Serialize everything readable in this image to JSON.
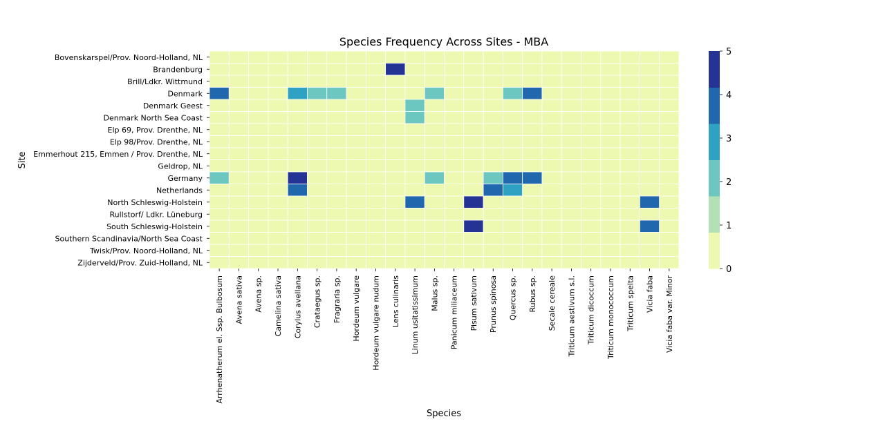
{
  "chart_data": {
    "type": "heatmap",
    "title": "Species Frequency Across Sites - MBA",
    "xlabel": "Species",
    "ylabel": "Site",
    "rows": [
      "Bovenskarspel/Prov. Noord-Holland, NL",
      "Brandenburg",
      "Brill/Ldkr. Wittmund",
      "Denmark",
      "Denmark Geest",
      "Denmark North Sea Coast",
      "Elp 69, Prov. Drenthe, NL",
      "Elp 98/Prov. Drenthe, NL",
      "Emmerhout 215, Emmen / Prov. Drenthe, NL",
      "Geldrop, NL",
      "Germany",
      "Netherlands",
      "North Schleswig-Holstein",
      "Rullstorf/ Ldkr. Lüneburg",
      "South Schleswig-Holstein",
      "Southern Scandinavia/North Sea Coast",
      "Twisk/Prov. Noord-Holland, NL",
      "Zijderveld/Prov. Zuid-Holland, NL"
    ],
    "columns": [
      "Arrhenatherum el. Ssp. Bulbosum",
      "Avena sativa",
      "Avena sp.",
      "Camelina sativa",
      "Corylus avellana",
      "Crataegus sp.",
      "Fragraria sp.",
      "Hordeum vulgare",
      "Hordeum vulgare nudum",
      "Lens culinaris",
      "Linum usitatissimum",
      "Malus sp.",
      "Panicum miliaceum",
      "Pisum sativum",
      "Prunus spinosa",
      "Quercus sp.",
      "Rubus sp.",
      "Secale cereale",
      "Triticum aestivum s.l.",
      "Triticum dicoccum",
      "Triticum monococcum",
      "Triticum spelta",
      "Vicia faba",
      "Vicia faba var. Minor"
    ],
    "values": [
      [
        0,
        0,
        0,
        0,
        0,
        0,
        0,
        0,
        0,
        0,
        0,
        0,
        0,
        0,
        0,
        0,
        0,
        0,
        0,
        0,
        0,
        0,
        0,
        0
      ],
      [
        0,
        0,
        0,
        0,
        0,
        0,
        0,
        0,
        0,
        5,
        0,
        0,
        0,
        0,
        0,
        0,
        0,
        0,
        0,
        0,
        0,
        0,
        0,
        0
      ],
      [
        0,
        0,
        0,
        0,
        0,
        0,
        0,
        0,
        0,
        0,
        0,
        0,
        0,
        0,
        0,
        0,
        0,
        0,
        0,
        0,
        0,
        0,
        0,
        0
      ],
      [
        4,
        0,
        0,
        0,
        3,
        2,
        2,
        0,
        0,
        0,
        0,
        2,
        0,
        0,
        0,
        2,
        4,
        0,
        0,
        0,
        0,
        0,
        0,
        0
      ],
      [
        0,
        0,
        0,
        0,
        0,
        0,
        0,
        0,
        0,
        0,
        2,
        0,
        0,
        0,
        0,
        0,
        0,
        0,
        0,
        0,
        0,
        0,
        0,
        0
      ],
      [
        0,
        0,
        0,
        0,
        0,
        0,
        0,
        0,
        0,
        0,
        2,
        0,
        0,
        0,
        0,
        0,
        0,
        0,
        0,
        0,
        0,
        0,
        0,
        0
      ],
      [
        0,
        0,
        0,
        0,
        0,
        0,
        0,
        0,
        0,
        0,
        0,
        0,
        0,
        0,
        0,
        0,
        0,
        0,
        0,
        0,
        0,
        0,
        0,
        0
      ],
      [
        0,
        0,
        0,
        0,
        0,
        0,
        0,
        0,
        0,
        0,
        0,
        0,
        0,
        0,
        0,
        0,
        0,
        0,
        0,
        0,
        0,
        0,
        0,
        0
      ],
      [
        0,
        0,
        0,
        0,
        0,
        0,
        0,
        0,
        0,
        0,
        0,
        0,
        0,
        0,
        0,
        0,
        0,
        0,
        0,
        0,
        0,
        0,
        0,
        0
      ],
      [
        0,
        0,
        0,
        0,
        0,
        0,
        0,
        0,
        0,
        0,
        0,
        0,
        0,
        0,
        0,
        0,
        0,
        0,
        0,
        0,
        0,
        0,
        0,
        0
      ],
      [
        2,
        0,
        0,
        0,
        5,
        0,
        0,
        0,
        0,
        0,
        0,
        2,
        0,
        0,
        2,
        4,
        4,
        0,
        0,
        0,
        0,
        0,
        0,
        0
      ],
      [
        0,
        0,
        0,
        0,
        4,
        0,
        0,
        0,
        0,
        0,
        0,
        0,
        0,
        0,
        4,
        3,
        0,
        0,
        0,
        0,
        0,
        0,
        0,
        0
      ],
      [
        0,
        0,
        0,
        0,
        0,
        0,
        0,
        0,
        0,
        0,
        4,
        0,
        0,
        5,
        0,
        0,
        0,
        0,
        0,
        0,
        0,
        0,
        4,
        0
      ],
      [
        0,
        0,
        0,
        0,
        0,
        0,
        0,
        0,
        0,
        0,
        0,
        0,
        0,
        0,
        0,
        0,
        0,
        0,
        0,
        0,
        0,
        0,
        0,
        0
      ],
      [
        0,
        0,
        0,
        0,
        0,
        0,
        0,
        0,
        0,
        0,
        0,
        0,
        0,
        5,
        0,
        0,
        0,
        0,
        0,
        0,
        0,
        0,
        4,
        0
      ],
      [
        0,
        0,
        0,
        0,
        0,
        0,
        0,
        0,
        0,
        0,
        0,
        0,
        0,
        0,
        0,
        0,
        0,
        0,
        0,
        0,
        0,
        0,
        0,
        0
      ],
      [
        0,
        0,
        0,
        0,
        0,
        0,
        0,
        0,
        0,
        0,
        0,
        0,
        0,
        0,
        0,
        0,
        0,
        0,
        0,
        0,
        0,
        0,
        0,
        0
      ],
      [
        0,
        0,
        0,
        0,
        0,
        0,
        0,
        0,
        0,
        0,
        0,
        0,
        0,
        0,
        0,
        0,
        0,
        0,
        0,
        0,
        0,
        0,
        0,
        0
      ]
    ],
    "colorbar": {
      "ticks": [
        "0",
        "1",
        "2",
        "3",
        "4",
        "5"
      ],
      "vmin": 0,
      "vmax": 5,
      "bands": 6,
      "colors": [
        "#edf8b1",
        "#b3e1b5",
        "#6cc7c0",
        "#2fa2c4",
        "#2167ad",
        "#253494"
      ]
    },
    "grid_color": "#ffffff"
  }
}
